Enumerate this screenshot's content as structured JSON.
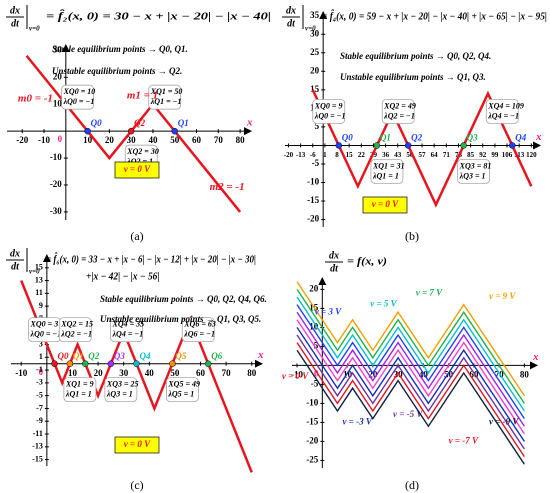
{
  "chart_data": [
    {
      "type": "line",
      "panel_label": "(a)",
      "equation": {
        "numerator": "dx",
        "denominator": "dt",
        "subscript": "v=0",
        "rhs": [
          "= f̂₂(x, 0) = 30 − x + |x − 20| − |x − 40|"
        ]
      },
      "x_label": "x",
      "origin_label": "0",
      "xlim": [
        -27,
        85
      ],
      "ylim": [
        -33,
        32
      ],
      "xticks": [
        -20,
        -10,
        10,
        20,
        30,
        40,
        50,
        60,
        70,
        80
      ],
      "yticks": [
        -30,
        -20,
        -10,
        10,
        20,
        30
      ],
      "x": [
        -18,
        20,
        40,
        80
      ],
      "series": [
        {
          "color": "#e8141e",
          "values": [
            28,
            -10,
            10,
            -30
          ]
        }
      ],
      "equilibria": {
        "labels": [
          "Q0",
          "Q2",
          "Q1"
        ],
        "x": [
          10,
          30,
          50
        ],
        "y": [
          0,
          0,
          0
        ],
        "stable": [
          true,
          false,
          true
        ],
        "colors": [
          "#1f3fff",
          "#e8141e",
          "#1f3fff"
        ],
        "boxes": [
          [
            "XQ0 = 10",
            "λQ0 = −1"
          ],
          [
            "XQ2 = 30",
            "λQ2 = 1"
          ],
          [
            "XQ1 = 50",
            "λQ1 = −1"
          ]
        ]
      },
      "stable_text": "Stable equilibrium points → Q0, Q1.",
      "unstable_text": "Unstable equilibrium points → Q2.",
      "slope_labels": [
        "m0 = -1",
        "m1 = 1",
        "m2 = -1"
      ],
      "v_label": "v = 0 V"
    },
    {
      "type": "line",
      "panel_label": "(b)",
      "equation": {
        "numerator": "dx",
        "denominator": "dt",
        "subscript": "v=0",
        "rhs": [
          "= f̂₄(x, 0) = 59 − x + |x − 20| − |x − 40| + |x − 65| − |x − 95|"
        ]
      },
      "x_label": "x",
      "xlim": [
        -22,
        125
      ],
      "ylim": [
        -22,
        36
      ],
      "xticks": [
        -20,
        -13,
        -6,
        1,
        8,
        15,
        22,
        29,
        36,
        43,
        50,
        57,
        64,
        71,
        78,
        85,
        92,
        99,
        106,
        113,
        120
      ],
      "yticks": [
        -20,
        -15,
        -10,
        -5,
        5,
        10,
        15,
        20,
        25,
        30,
        35
      ],
      "x": [
        -6,
        20,
        40,
        65,
        95,
        120
      ],
      "series": [
        {
          "color": "#e8141e",
          "values": [
            15,
            -11,
            9,
            -16,
            14,
            -11
          ]
        }
      ],
      "equilibria": {
        "labels": [
          "Q0",
          "Q1",
          "Q2",
          "Q3",
          "Q4"
        ],
        "x": [
          9,
          31,
          49,
          81,
          109
        ],
        "y": [
          0,
          0,
          0,
          0,
          0
        ],
        "stable": [
          true,
          false,
          true,
          false,
          true
        ],
        "colors": [
          "#1f3fff",
          "#22b14c",
          "#1f3fff",
          "#22b14c",
          "#1f3fff"
        ],
        "boxes": [
          [
            "XQ0 = 9",
            "λQ0 = −1"
          ],
          [
            "XQ1 = 31",
            "λQ1 = 1"
          ],
          [
            "XQ2 = 49",
            "λQ2 = −1"
          ],
          [
            "XQ3 = 81",
            "λQ3 = 1"
          ],
          [
            "XQ4 = 109",
            "λQ4 = −1"
          ]
        ]
      },
      "stable_text": "Stable equilibrium points → Q0, Q2, Q4.",
      "unstable_text": "Unstable equilibrium points → Q1, Q3.",
      "v_label": "v = 0 V"
    },
    {
      "type": "line",
      "panel_label": "(c)",
      "equation": {
        "numerator": "dx",
        "denominator": "dt",
        "subscript": "v=0",
        "rhs": [
          "= f̂₆(x, 0) = 33 − x + |x − 6| − |x − 12| + |x − 20| − |x − 30|",
          "+|x − 42| − |x − 56|"
        ]
      },
      "x_label": "x",
      "origin_label": "0",
      "xlim": [
        -14,
        84
      ],
      "ylim": [
        -16,
        17
      ],
      "xticks": [
        -10,
        10,
        20,
        30,
        40,
        50,
        60,
        70,
        80
      ],
      "yticks": [
        -15,
        -13,
        -11,
        -9,
        -7,
        -5,
        -3,
        -1,
        1,
        3,
        5,
        7,
        9,
        11,
        13,
        15
      ],
      "x": [
        -10,
        6,
        12,
        20,
        30,
        42,
        56,
        80
      ],
      "series": [
        {
          "color": "#e8141e",
          "values": [
            13,
            -3,
            3,
            -5,
            5,
            -7,
            7,
            -17
          ]
        }
      ],
      "equilibria": {
        "labels": [
          "Q0",
          "Q1",
          "Q2",
          "Q3",
          "Q4",
          "Q5",
          "Q6"
        ],
        "x": [
          3,
          9,
          15,
          25,
          35,
          49,
          63
        ],
        "y": [
          0,
          0,
          0,
          0,
          0,
          0,
          0
        ],
        "stable": [
          true,
          false,
          true,
          false,
          true,
          false,
          true
        ],
        "colors": [
          "#e8141e",
          "#ff8c00",
          "#22b14c",
          "#9b30ff",
          "#00bcd4",
          "#ff8c00",
          "#22b14c"
        ],
        "boxes": [
          [
            "XQ0 = 3",
            "λQ0 = −1"
          ],
          [
            "XQ1 = 9",
            "λQ1 = 1"
          ],
          [
            "XQ2 = 15",
            "λQ2 = −1"
          ],
          [
            "XQ3 = 25",
            "λQ3 = 1"
          ],
          [
            "XQ4 = 35",
            "λQ4 = −1"
          ],
          [
            "XQ5 = 49",
            "λQ5 = 1"
          ],
          [
            "XQ6 = 63",
            "λQ6 = −1"
          ]
        ]
      },
      "stable_text": "Stable equilibrium points → Q0, Q2, Q4, Q6.",
      "unstable_text": "Unstable equilibrium points → Q1, Q3, Q5.",
      "v_label": "v = 0 V"
    },
    {
      "type": "line",
      "panel_label": "(d)",
      "equation": {
        "numerator": "dx",
        "denominator": "dt",
        "rhs": [
          "= f(x, v)"
        ]
      },
      "x_label": "x",
      "origin_label": "0",
      "xlim": [
        -12,
        85
      ],
      "ylim": [
        -27,
        23
      ],
      "xticks": [
        -10,
        10,
        20,
        30,
        40,
        50,
        60,
        70,
        80
      ],
      "yticks": [
        -25,
        -20,
        -15,
        -10,
        -5,
        5,
        10,
        15,
        20
      ],
      "x": [
        -10,
        6,
        12,
        20,
        30,
        42,
        56,
        80
      ],
      "series": [
        {
          "name": "v = 9 V",
          "color": "#f0a000",
          "values": [
            22,
            6,
            12,
            4,
            14,
            2,
            16,
            -8
          ]
        },
        {
          "name": "v = 7 V",
          "color": "#22b14c",
          "values": [
            20,
            4,
            10,
            2,
            12,
            0,
            14,
            -10
          ]
        },
        {
          "name": "v = 5 V",
          "color": "#00c0d0",
          "values": [
            18,
            2,
            8,
            0,
            10,
            -2,
            12,
            -12
          ]
        },
        {
          "name": "v = 3 V",
          "color": "#2040ff",
          "values": [
            16,
            0,
            6,
            -2,
            8,
            -4,
            10,
            -14
          ]
        },
        {
          "color": "#a020f0",
          "values": [
            14,
            -2,
            4,
            -4,
            6,
            -6,
            8,
            -16
          ]
        },
        {
          "color": "#ff40c0",
          "values": [
            12,
            -4,
            2,
            -6,
            4,
            -8,
            6,
            -18
          ]
        },
        {
          "name": "v = -3 V",
          "color": "#1030c0",
          "values": [
            10,
            -6,
            0,
            -8,
            2,
            -10,
            4,
            -20
          ]
        },
        {
          "name": "v = -5 V",
          "color": "#7030a0",
          "values": [
            8,
            -8,
            -2,
            -10,
            0,
            -12,
            2,
            -22
          ]
        },
        {
          "name": "v = -7 V",
          "color": "#e8141e",
          "values": [
            6,
            -10,
            -4,
            -12,
            -2,
            -14,
            0,
            -24
          ]
        },
        {
          "name": "v = -9 V",
          "color": "#102040",
          "values": [
            4,
            -12,
            -6,
            -14,
            -4,
            -16,
            -2,
            -26
          ]
        }
      ],
      "v_label": "v = 0 V"
    }
  ]
}
